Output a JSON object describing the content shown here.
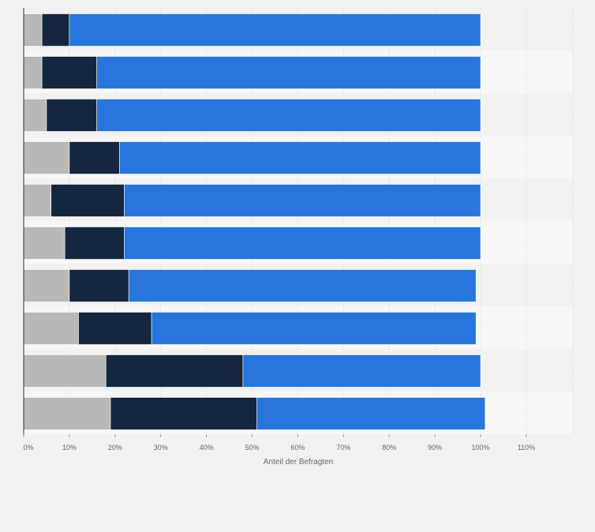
{
  "chart_data": {
    "type": "bar",
    "orientation": "horizontal",
    "stacked": true,
    "title": "",
    "xlabel": "Anteil der Befragten",
    "ylabel": "",
    "xlim": [
      0,
      120
    ],
    "x_ticks": [
      "0%",
      "10%",
      "20%",
      "30%",
      "40%",
      "50%",
      "60%",
      "70%",
      "80%",
      "90%",
      "100%",
      "110%"
    ],
    "categories": [
      "",
      "",
      "",
      "",
      "",
      "",
      "",
      "",
      "",
      ""
    ],
    "grid": true,
    "legend": "none",
    "series": [
      {
        "color": "#b8b8b8",
        "values": [
          4,
          4,
          5,
          10,
          6,
          9,
          10,
          12,
          18,
          19
        ]
      },
      {
        "color": "#14273e",
        "values": [
          6,
          12,
          11,
          11,
          16,
          13,
          13,
          16,
          30,
          32
        ]
      },
      {
        "color": "#2876dd",
        "values": [
          90,
          84,
          84,
          79,
          78,
          78,
          76,
          71,
          52,
          50
        ]
      }
    ]
  }
}
